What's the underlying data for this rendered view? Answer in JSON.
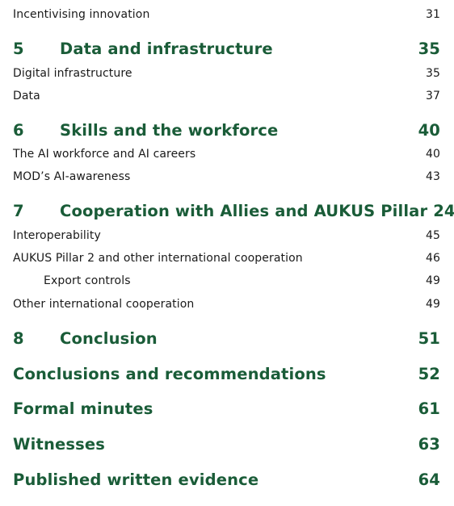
{
  "toc": {
    "entries": [
      {
        "kind": "sub",
        "title": "Incentivising innovation",
        "page": "31"
      },
      {
        "kind": "chapter",
        "number": "5",
        "title": "Data and infrastructure",
        "page": "35"
      },
      {
        "kind": "sub",
        "title": "Digital infrastructure",
        "page": "35"
      },
      {
        "kind": "sub",
        "title": "Data",
        "page": "37"
      },
      {
        "kind": "chapter",
        "number": "6",
        "title": "Skills and the workforce",
        "page": "40"
      },
      {
        "kind": "sub",
        "title": "The AI workforce and AI careers",
        "page": "40"
      },
      {
        "kind": "sub",
        "title": "MOD’s AI-awareness",
        "page": "43"
      },
      {
        "kind": "chapter",
        "number": "7",
        "title": "Cooperation with Allies and AUKUS Pillar 2",
        "page": "45"
      },
      {
        "kind": "sub",
        "title": "Interoperability",
        "page": "45"
      },
      {
        "kind": "sub",
        "title": "AUKUS Pillar 2 and other international cooperation",
        "page": "46"
      },
      {
        "kind": "subsub",
        "title": "Export controls",
        "page": "49"
      },
      {
        "kind": "sub",
        "title": "Other international cooperation",
        "page": "49"
      },
      {
        "kind": "chapter",
        "number": "8",
        "title": "Conclusion",
        "page": "51"
      },
      {
        "kind": "section",
        "title": "Conclusions and recommendations",
        "page": "52"
      },
      {
        "kind": "section",
        "title": "Formal minutes",
        "page": "61"
      },
      {
        "kind": "section",
        "title": "Witnesses",
        "page": "63"
      },
      {
        "kind": "section",
        "title": "Published written evidence",
        "page": "64"
      }
    ]
  }
}
